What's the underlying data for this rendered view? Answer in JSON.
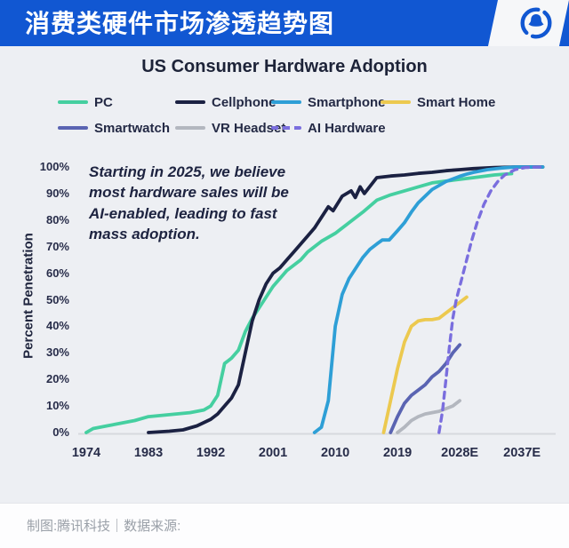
{
  "header": {
    "title": "消费类硬件市场渗透趋势图",
    "logo_icon": "tencent-tech-bell-logo"
  },
  "chart": {
    "title": "US Consumer Hardware Adoption",
    "y_axis_label": "Percent Penetration",
    "annotation": "Starting in 2025, we believe\nmost hardware sales will be\nAI-enabled, leading to fast\nmass adoption."
  },
  "chart_data": {
    "type": "line",
    "title": "US Consumer Hardware Adoption",
    "xlabel": "",
    "ylabel": "Percent Penetration",
    "ylim": [
      0,
      100
    ],
    "xlim": [
      1974,
      2040
    ],
    "grid": false,
    "legend_position": "top",
    "x_ticks": [
      "1974",
      "1983",
      "1992",
      "2001",
      "2010",
      "2019",
      "2028E",
      "2037E"
    ],
    "y_tick_percents": [
      0,
      10,
      20,
      30,
      40,
      50,
      60,
      70,
      80,
      90,
      100
    ],
    "annotation": "Starting in 2025, we believe most hardware sales will be AI-enabled, leading to fast mass adoption.",
    "series": [
      {
        "name": "PC",
        "color": "#45cfa0",
        "dashed": false,
        "points": [
          [
            1974,
            0
          ],
          [
            1975,
            1.5
          ],
          [
            1977,
            2.5
          ],
          [
            1979,
            3.5
          ],
          [
            1981,
            4.5
          ],
          [
            1983,
            6
          ],
          [
            1985,
            6.5
          ],
          [
            1987,
            7
          ],
          [
            1989,
            7.5
          ],
          [
            1991,
            8.5
          ],
          [
            1992,
            10
          ],
          [
            1993,
            14
          ],
          [
            1994,
            26
          ],
          [
            1995,
            28
          ],
          [
            1996,
            31
          ],
          [
            1997,
            38
          ],
          [
            1998,
            43
          ],
          [
            1999,
            47
          ],
          [
            2000,
            51
          ],
          [
            2001,
            55
          ],
          [
            2002,
            58
          ],
          [
            2003,
            61
          ],
          [
            2004,
            63
          ],
          [
            2005,
            65
          ],
          [
            2006,
            68
          ],
          [
            2007,
            70
          ],
          [
            2008,
            72
          ],
          [
            2010,
            75
          ],
          [
            2012,
            79
          ],
          [
            2014,
            83
          ],
          [
            2016,
            87.5
          ],
          [
            2018,
            89.5
          ],
          [
            2020,
            91
          ],
          [
            2022,
            92.5
          ],
          [
            2024,
            94
          ],
          [
            2027,
            95
          ],
          [
            2030,
            96
          ],
          [
            2033,
            97
          ],
          [
            2035.5,
            97.5
          ]
        ]
      },
      {
        "name": "Cellphone",
        "color": "#1b2142",
        "dashed": false,
        "points": [
          [
            1983,
            0
          ],
          [
            1986,
            0.5
          ],
          [
            1988,
            1
          ],
          [
            1990,
            2.5
          ],
          [
            1992,
            5
          ],
          [
            1993,
            7
          ],
          [
            1994,
            10
          ],
          [
            1995,
            13
          ],
          [
            1996,
            18
          ],
          [
            1997,
            30
          ],
          [
            1998,
            42
          ],
          [
            1999,
            50
          ],
          [
            2000,
            56
          ],
          [
            2001,
            60
          ],
          [
            2002,
            62
          ],
          [
            2003,
            65
          ],
          [
            2004,
            68
          ],
          [
            2005,
            71
          ],
          [
            2006,
            74
          ],
          [
            2007,
            77
          ],
          [
            2008,
            81
          ],
          [
            2009,
            85
          ],
          [
            2009.7,
            83.5
          ],
          [
            2011,
            89
          ],
          [
            2012.3,
            91
          ],
          [
            2012.9,
            88.5
          ],
          [
            2013.6,
            92.5
          ],
          [
            2014.2,
            90
          ],
          [
            2016,
            96
          ],
          [
            2018,
            96.6
          ],
          [
            2020,
            97
          ],
          [
            2022,
            97.6
          ],
          [
            2024,
            98
          ],
          [
            2026,
            98.6
          ],
          [
            2028,
            99
          ],
          [
            2030,
            99.4
          ],
          [
            2033,
            99.8
          ],
          [
            2036,
            100
          ],
          [
            2040,
            100
          ]
        ]
      },
      {
        "name": "Smartphone",
        "color": "#2e9fd6",
        "dashed": false,
        "points": [
          [
            2007,
            0
          ],
          [
            2008,
            2
          ],
          [
            2009,
            12
          ],
          [
            2010,
            40
          ],
          [
            2011,
            52
          ],
          [
            2012,
            58
          ],
          [
            2013,
            62
          ],
          [
            2014,
            66
          ],
          [
            2015,
            69
          ],
          [
            2016,
            71
          ],
          [
            2016.8,
            72.5
          ],
          [
            2017.8,
            72.5
          ],
          [
            2019,
            76
          ],
          [
            2020,
            79
          ],
          [
            2021,
            83
          ],
          [
            2022,
            86.5
          ],
          [
            2023,
            89
          ],
          [
            2024,
            91.5
          ],
          [
            2025,
            93
          ],
          [
            2026,
            94.5
          ],
          [
            2027,
            95.5
          ],
          [
            2028,
            96.5
          ],
          [
            2029,
            97.3
          ],
          [
            2030,
            98
          ],
          [
            2032,
            99
          ],
          [
            2034,
            99.6
          ],
          [
            2036,
            100
          ],
          [
            2040,
            100
          ]
        ]
      },
      {
        "name": "Smart Home",
        "color": "#ecc94f",
        "dashed": false,
        "points": [
          [
            2017,
            0
          ],
          [
            2018,
            12
          ],
          [
            2019,
            24
          ],
          [
            2020,
            34
          ],
          [
            2021,
            40
          ],
          [
            2022,
            42
          ],
          [
            2023,
            42.5
          ],
          [
            2024,
            42.5
          ],
          [
            2025,
            43
          ],
          [
            2026,
            45
          ],
          [
            2027,
            47
          ],
          [
            2028,
            49
          ],
          [
            2029,
            51
          ]
        ]
      },
      {
        "name": "Smartwatch",
        "color": "#5a64b2",
        "dashed": false,
        "points": [
          [
            2018,
            0
          ],
          [
            2019,
            6
          ],
          [
            2020,
            11
          ],
          [
            2021,
            14
          ],
          [
            2022,
            16
          ],
          [
            2023,
            18
          ],
          [
            2024,
            21
          ],
          [
            2025,
            23
          ],
          [
            2026,
            26
          ],
          [
            2027,
            30
          ],
          [
            2028,
            33
          ]
        ]
      },
      {
        "name": "VR Headset",
        "color": "#b3b7bf",
        "dashed": false,
        "points": [
          [
            2019,
            0
          ],
          [
            2020,
            2
          ],
          [
            2021,
            4.5
          ],
          [
            2022,
            6
          ],
          [
            2023,
            7
          ],
          [
            2024,
            7.5
          ],
          [
            2025,
            8
          ],
          [
            2026,
            9
          ],
          [
            2027,
            10
          ],
          [
            2028,
            12
          ]
        ]
      },
      {
        "name": "AI Hardware",
        "color": "#7a6ede",
        "dashed": true,
        "points": [
          [
            2025,
            0
          ],
          [
            2025.5,
            8
          ],
          [
            2026,
            20
          ],
          [
            2026.5,
            32
          ],
          [
            2027,
            43
          ],
          [
            2027.5,
            50
          ],
          [
            2028,
            55
          ],
          [
            2028.5,
            60
          ],
          [
            2029,
            65
          ],
          [
            2029.7,
            72
          ],
          [
            2030.5,
            79
          ],
          [
            2031.5,
            86
          ],
          [
            2032.5,
            91
          ],
          [
            2033.5,
            94.5
          ],
          [
            2034.5,
            97
          ],
          [
            2036,
            99
          ],
          [
            2037.5,
            99.8
          ],
          [
            2040,
            100
          ]
        ]
      }
    ]
  },
  "footer": {
    "credit": "制图:腾讯科技｜数据来源:"
  },
  "colors": {
    "banner_blue": "#1157d2",
    "background": "#edeff3",
    "text_navy": "#1d2340",
    "axis_text": "#272c49",
    "footer_text": "#9aa0a8"
  }
}
